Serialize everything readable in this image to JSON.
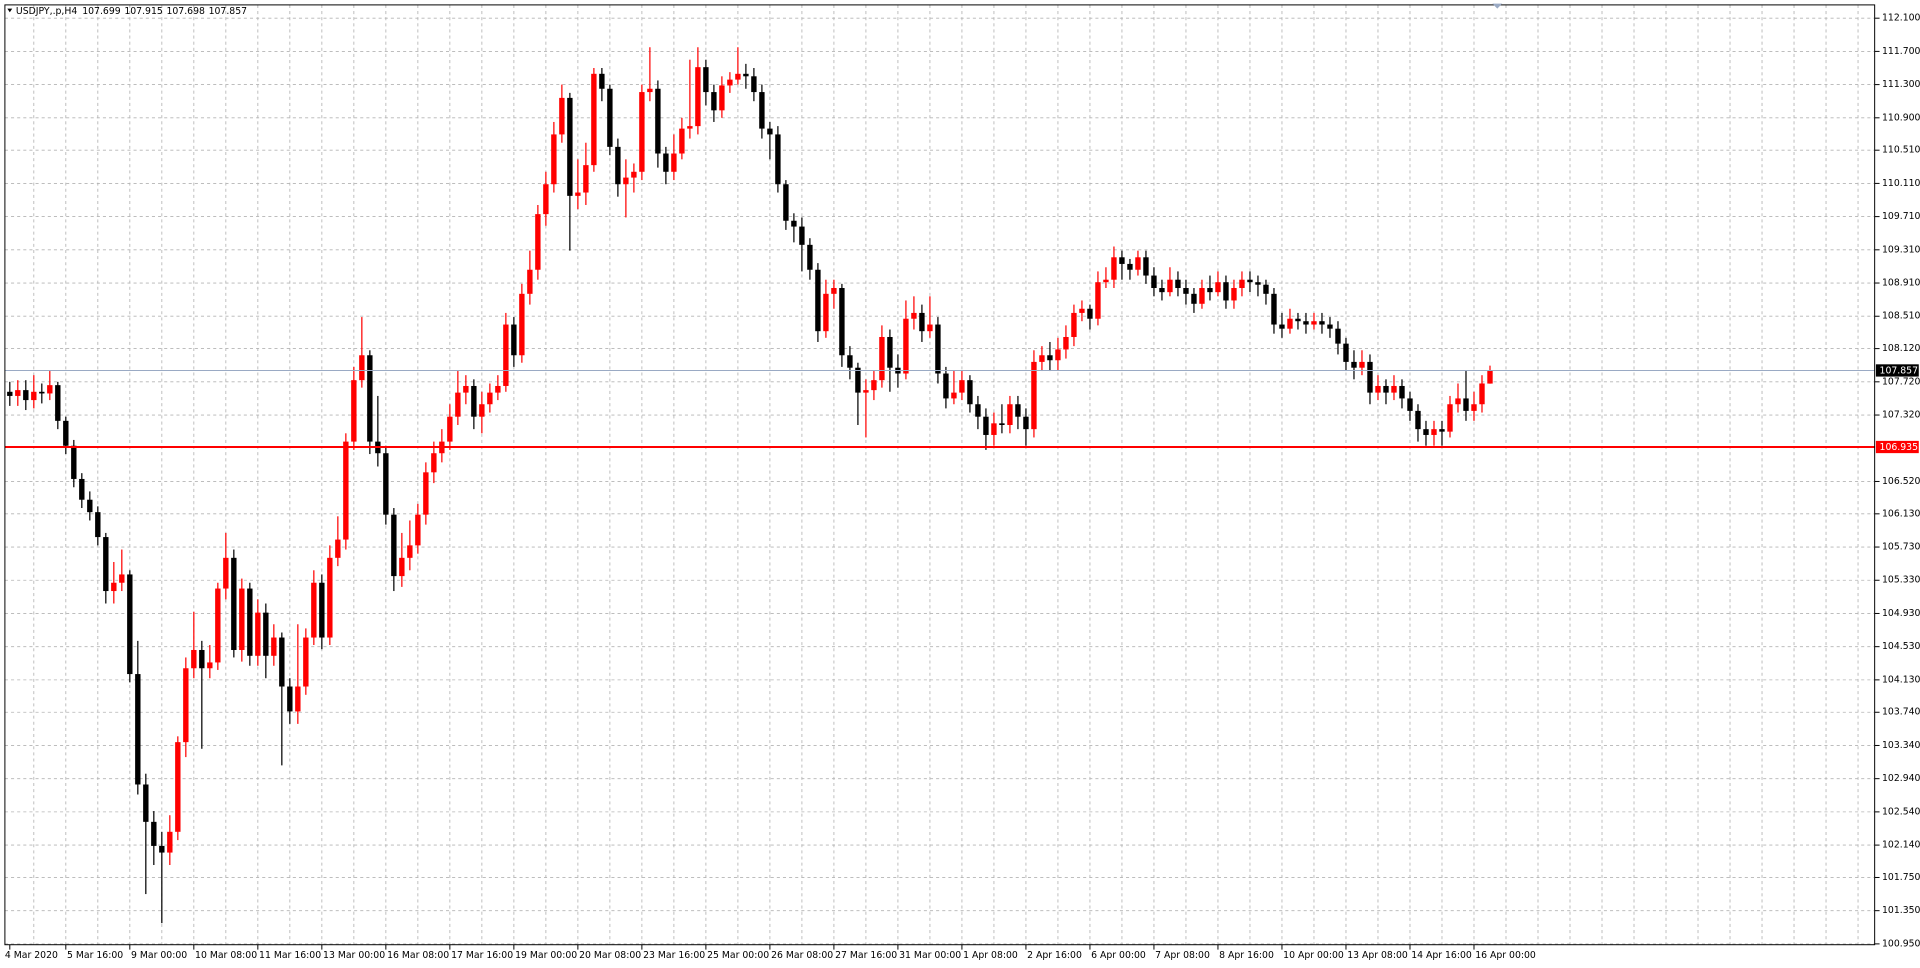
{
  "chart_data": {
    "type": "candlestick",
    "title": "USDJPY,.p,H4",
    "categories": [
      "4 Mar 2020",
      null,
      null,
      null,
      null,
      null,
      null,
      "5 Mar 16:00",
      null,
      null,
      null,
      null,
      null,
      null,
      null,
      "9 Mar 00:00",
      null,
      null,
      null,
      null,
      null,
      null,
      null,
      "10 Mar 08:00",
      null,
      null,
      null,
      null,
      null,
      null,
      null,
      "11 Mar 16:00",
      null,
      null,
      null,
      null,
      null,
      null,
      null,
      "13 Mar 00:00",
      null,
      null,
      null,
      null,
      null,
      null,
      null,
      "16 Mar 08:00",
      null,
      null,
      null,
      null,
      null,
      null,
      null,
      "17 Mar 16:00",
      null,
      null,
      null,
      null,
      null,
      null,
      null,
      "19 Mar 00:00",
      null,
      null,
      null,
      null,
      null,
      null,
      null,
      "20 Mar 08:00",
      null,
      null,
      null,
      null,
      null,
      null,
      null,
      "23 Mar 16:00",
      null,
      null,
      null,
      null,
      null,
      null,
      null,
      "25 Mar 00:00",
      null,
      null,
      null,
      null,
      null,
      null,
      null,
      "26 Mar 08:00",
      null,
      null,
      null,
      null,
      null,
      null,
      null,
      "27 Mar 16:00",
      null,
      null,
      null,
      null,
      null,
      null,
      null,
      "31 Mar 00:00",
      null,
      null,
      null,
      null,
      null,
      null,
      null,
      "1 Apr 08:00",
      null,
      null,
      null,
      null,
      null,
      null,
      null,
      "2 Apr 16:00",
      null,
      null,
      null,
      null,
      null,
      null,
      null,
      "6 Apr 00:00",
      null,
      null,
      null,
      null,
      null,
      null,
      null,
      "7 Apr 08:00",
      null,
      null,
      null,
      null,
      null,
      null,
      null,
      "8 Apr 16:00",
      null,
      null,
      null,
      null,
      null,
      null,
      null,
      "10 Apr 00:00",
      null,
      null,
      null,
      null,
      null,
      null,
      null,
      "13 Apr 08:00",
      null,
      null,
      null,
      null,
      null,
      null,
      null,
      "14 Apr 16:00",
      null,
      null,
      null,
      null,
      null,
      null,
      null,
      "16 Apr 00:00",
      null,
      null
    ],
    "ohlc": [
      [
        107.6,
        107.72,
        107.43,
        107.55
      ],
      [
        107.55,
        107.74,
        107.43,
        107.62
      ],
      [
        107.62,
        107.74,
        107.38,
        107.5
      ],
      [
        107.5,
        107.8,
        107.4,
        107.6
      ],
      [
        107.6,
        107.7,
        107.46,
        107.58
      ],
      [
        107.58,
        107.85,
        107.5,
        107.68
      ],
      [
        107.68,
        107.72,
        107.15,
        107.25
      ],
      [
        107.25,
        107.3,
        106.85,
        106.95
      ],
      [
        106.95,
        107.02,
        106.45,
        106.55
      ],
      [
        106.55,
        106.62,
        106.2,
        106.3
      ],
      [
        106.3,
        106.4,
        106.05,
        106.15
      ],
      [
        106.15,
        106.22,
        105.75,
        105.85
      ],
      [
        105.85,
        105.9,
        105.05,
        105.2
      ],
      [
        105.2,
        105.55,
        105.05,
        105.3
      ],
      [
        105.3,
        105.7,
        105.2,
        105.4
      ],
      [
        105.4,
        105.45,
        104.1,
        104.2
      ],
      [
        104.2,
        104.6,
        102.75,
        102.87
      ],
      [
        102.87,
        103.0,
        101.55,
        102.42
      ],
      [
        102.42,
        102.55,
        101.9,
        102.13
      ],
      [
        102.13,
        102.3,
        101.2,
        102.05
      ],
      [
        102.05,
        102.5,
        101.9,
        102.3
      ],
      [
        102.3,
        103.45,
        102.2,
        103.38
      ],
      [
        103.38,
        104.4,
        103.2,
        104.27
      ],
      [
        104.27,
        104.95,
        104.15,
        104.49
      ],
      [
        104.49,
        104.6,
        103.3,
        104.27
      ],
      [
        104.27,
        104.55,
        104.15,
        104.34
      ],
      [
        104.34,
        105.3,
        104.25,
        105.23
      ],
      [
        105.23,
        105.9,
        105.1,
        105.6
      ],
      [
        105.6,
        105.7,
        104.4,
        104.49
      ],
      [
        104.49,
        105.35,
        104.35,
        105.23
      ],
      [
        105.23,
        105.3,
        104.3,
        104.42
      ],
      [
        104.42,
        105.1,
        104.3,
        104.94
      ],
      [
        104.94,
        105.05,
        104.15,
        104.42
      ],
      [
        104.42,
        104.8,
        104.3,
        104.64
      ],
      [
        104.64,
        104.7,
        103.1,
        104.05
      ],
      [
        104.05,
        104.15,
        103.6,
        103.75
      ],
      [
        103.75,
        104.8,
        103.6,
        104.05
      ],
      [
        104.05,
        104.75,
        103.95,
        104.64
      ],
      [
        104.64,
        105.45,
        104.55,
        105.3
      ],
      [
        105.3,
        105.4,
        104.5,
        104.64
      ],
      [
        104.64,
        105.75,
        104.55,
        105.6
      ],
      [
        105.6,
        106.1,
        105.5,
        105.82
      ],
      [
        105.82,
        107.1,
        105.7,
        107.0
      ],
      [
        107.0,
        107.9,
        106.9,
        107.74
      ],
      [
        107.74,
        108.5,
        107.65,
        108.04
      ],
      [
        108.04,
        108.1,
        106.85,
        107.0
      ],
      [
        107.0,
        107.55,
        106.7,
        106.86
      ],
      [
        106.86,
        106.95,
        106.0,
        106.12
      ],
      [
        106.12,
        106.2,
        105.2,
        105.38
      ],
      [
        105.38,
        105.9,
        105.25,
        105.6
      ],
      [
        105.6,
        106.05,
        105.45,
        105.75
      ],
      [
        105.75,
        106.25,
        105.65,
        106.12
      ],
      [
        106.12,
        106.75,
        106.0,
        106.63
      ],
      [
        106.63,
        107.0,
        106.5,
        106.86
      ],
      [
        106.86,
        107.15,
        106.75,
        107.0
      ],
      [
        107.0,
        107.45,
        106.9,
        107.3
      ],
      [
        107.3,
        107.85,
        107.2,
        107.59
      ],
      [
        107.59,
        107.8,
        107.45,
        107.67
      ],
      [
        107.67,
        107.75,
        107.15,
        107.3
      ],
      [
        107.3,
        107.6,
        107.1,
        107.45
      ],
      [
        107.45,
        107.7,
        107.35,
        107.59
      ],
      [
        107.59,
        107.8,
        107.5,
        107.67
      ],
      [
        107.67,
        108.55,
        107.6,
        108.41
      ],
      [
        108.41,
        108.5,
        107.9,
        108.04
      ],
      [
        108.04,
        108.9,
        107.95,
        108.78
      ],
      [
        108.78,
        109.3,
        108.65,
        109.07
      ],
      [
        109.07,
        109.85,
        108.95,
        109.74
      ],
      [
        109.74,
        110.25,
        109.6,
        110.1
      ],
      [
        110.1,
        110.85,
        110.0,
        110.7
      ],
      [
        110.7,
        111.3,
        110.6,
        111.14
      ],
      [
        111.14,
        111.2,
        109.3,
        109.96
      ],
      [
        109.96,
        110.4,
        109.8,
        110.0
      ],
      [
        110.0,
        110.6,
        109.85,
        110.33
      ],
      [
        110.33,
        111.5,
        110.25,
        111.43
      ],
      [
        111.43,
        111.5,
        111.1,
        111.25
      ],
      [
        111.25,
        111.3,
        110.45,
        110.55
      ],
      [
        110.55,
        110.65,
        109.95,
        110.1
      ],
      [
        110.1,
        110.4,
        109.7,
        110.18
      ],
      [
        110.18,
        110.35,
        110.0,
        110.25
      ],
      [
        110.25,
        111.3,
        110.15,
        111.21
      ],
      [
        111.21,
        111.75,
        111.1,
        111.25
      ],
      [
        111.25,
        111.35,
        110.3,
        110.47
      ],
      [
        110.47,
        110.55,
        110.1,
        110.25
      ],
      [
        110.25,
        110.7,
        110.15,
        110.47
      ],
      [
        110.47,
        110.9,
        110.4,
        110.77
      ],
      [
        110.77,
        111.6,
        110.65,
        110.8
      ],
      [
        110.8,
        111.75,
        110.7,
        111.51
      ],
      [
        111.51,
        111.6,
        111.05,
        111.21
      ],
      [
        111.21,
        111.3,
        110.85,
        110.99
      ],
      [
        110.99,
        111.4,
        110.9,
        111.29
      ],
      [
        111.29,
        111.45,
        111.2,
        111.36
      ],
      [
        111.36,
        111.75,
        111.3,
        111.43
      ],
      [
        111.43,
        111.55,
        111.25,
        111.4
      ],
      [
        111.4,
        111.5,
        111.1,
        111.21
      ],
      [
        111.21,
        111.3,
        110.65,
        110.77
      ],
      [
        110.77,
        110.85,
        110.4,
        110.7
      ],
      [
        110.7,
        110.8,
        110.0,
        110.1
      ],
      [
        110.1,
        110.15,
        109.55,
        109.66
      ],
      [
        109.66,
        109.75,
        109.4,
        109.59
      ],
      [
        109.59,
        109.7,
        109.05,
        109.37
      ],
      [
        109.37,
        109.45,
        108.95,
        109.07
      ],
      [
        109.07,
        109.15,
        108.2,
        108.33
      ],
      [
        108.33,
        108.95,
        108.25,
        108.78
      ],
      [
        108.78,
        108.95,
        108.6,
        108.85
      ],
      [
        108.85,
        108.9,
        107.9,
        108.04
      ],
      [
        108.04,
        108.15,
        107.75,
        107.89
      ],
      [
        107.89,
        107.95,
        107.2,
        107.59
      ],
      [
        107.59,
        107.75,
        107.05,
        107.62
      ],
      [
        107.62,
        107.85,
        107.5,
        107.74
      ],
      [
        107.74,
        108.4,
        107.65,
        108.26
      ],
      [
        108.26,
        108.35,
        107.6,
        107.89
      ],
      [
        107.89,
        108.05,
        107.65,
        107.82
      ],
      [
        107.82,
        108.7,
        107.75,
        108.48
      ],
      [
        108.48,
        108.75,
        108.35,
        108.55
      ],
      [
        108.55,
        108.65,
        108.2,
        108.33
      ],
      [
        108.33,
        108.75,
        108.25,
        108.41
      ],
      [
        108.41,
        108.5,
        107.7,
        107.82
      ],
      [
        107.82,
        107.9,
        107.4,
        107.52
      ],
      [
        107.52,
        107.85,
        107.45,
        107.59
      ],
      [
        107.59,
        107.85,
        107.5,
        107.74
      ],
      [
        107.74,
        107.8,
        107.35,
        107.45
      ],
      [
        107.45,
        107.55,
        107.15,
        107.3
      ],
      [
        107.3,
        107.4,
        106.9,
        107.08
      ],
      [
        107.08,
        107.35,
        106.95,
        107.22
      ],
      [
        107.22,
        107.45,
        107.1,
        107.2
      ],
      [
        107.2,
        107.55,
        107.1,
        107.45
      ],
      [
        107.45,
        107.55,
        107.15,
        107.3
      ],
      [
        107.3,
        107.4,
        106.95,
        107.15
      ],
      [
        107.15,
        108.1,
        107.05,
        107.96
      ],
      [
        107.96,
        108.15,
        107.85,
        108.04
      ],
      [
        108.04,
        108.2,
        107.85,
        107.98
      ],
      [
        107.98,
        108.25,
        107.85,
        108.11
      ],
      [
        108.11,
        108.4,
        108.0,
        108.26
      ],
      [
        108.26,
        108.65,
        108.15,
        108.55
      ],
      [
        108.55,
        108.7,
        108.45,
        108.6
      ],
      [
        108.6,
        108.65,
        108.35,
        108.48
      ],
      [
        108.48,
        109.05,
        108.4,
        108.92
      ],
      [
        108.92,
        109.1,
        108.85,
        108.95
      ],
      [
        108.95,
        109.35,
        108.85,
        109.22
      ],
      [
        109.22,
        109.3,
        108.95,
        109.14
      ],
      [
        109.14,
        109.2,
        108.95,
        109.07
      ],
      [
        109.07,
        109.3,
        109.0,
        109.22
      ],
      [
        109.22,
        109.3,
        108.9,
        109.0
      ],
      [
        109.0,
        109.1,
        108.75,
        108.85
      ],
      [
        108.85,
        108.95,
        108.7,
        108.8
      ],
      [
        108.8,
        109.1,
        108.75,
        108.95
      ],
      [
        108.95,
        109.05,
        108.75,
        108.85
      ],
      [
        108.85,
        108.95,
        108.65,
        108.78
      ],
      [
        108.78,
        108.85,
        108.55,
        108.66
      ],
      [
        108.66,
        108.95,
        108.6,
        108.85
      ],
      [
        108.85,
        109.0,
        108.7,
        108.8
      ],
      [
        108.8,
        109.05,
        108.75,
        108.92
      ],
      [
        108.92,
        109.0,
        108.6,
        108.7
      ],
      [
        108.7,
        108.95,
        108.6,
        108.85
      ],
      [
        108.85,
        109.05,
        108.75,
        108.95
      ],
      [
        108.95,
        109.05,
        108.8,
        108.92
      ],
      [
        108.92,
        109.0,
        108.75,
        108.89
      ],
      [
        108.89,
        108.95,
        108.65,
        108.78
      ],
      [
        108.78,
        108.85,
        108.3,
        108.41
      ],
      [
        108.41,
        108.55,
        108.25,
        108.36
      ],
      [
        108.36,
        108.6,
        108.3,
        108.48
      ],
      [
        108.48,
        108.55,
        108.35,
        108.45
      ],
      [
        108.45,
        108.55,
        108.3,
        108.41
      ],
      [
        108.41,
        108.55,
        108.35,
        108.45
      ],
      [
        108.45,
        108.55,
        108.3,
        108.41
      ],
      [
        108.41,
        108.5,
        108.25,
        108.36
      ],
      [
        108.36,
        108.45,
        108.05,
        108.18
      ],
      [
        108.18,
        108.25,
        107.85,
        107.96
      ],
      [
        107.96,
        108.1,
        107.75,
        107.89
      ],
      [
        107.89,
        108.1,
        107.8,
        107.96
      ],
      [
        107.96,
        108.05,
        107.45,
        107.59
      ],
      [
        107.59,
        107.8,
        107.5,
        107.67
      ],
      [
        107.67,
        107.75,
        107.45,
        107.59
      ],
      [
        107.59,
        107.8,
        107.5,
        107.67
      ],
      [
        107.67,
        107.75,
        107.4,
        107.52
      ],
      [
        107.52,
        107.6,
        107.25,
        107.37
      ],
      [
        107.37,
        107.45,
        107.0,
        107.15
      ],
      [
        107.15,
        107.25,
        106.95,
        107.08
      ],
      [
        107.08,
        107.25,
        106.95,
        107.15
      ],
      [
        107.15,
        107.25,
        106.95,
        107.12
      ],
      [
        107.12,
        107.55,
        107.05,
        107.45
      ],
      [
        107.45,
        107.7,
        107.35,
        107.52
      ],
      [
        107.52,
        107.85,
        107.25,
        107.37
      ],
      [
        107.37,
        107.6,
        107.25,
        107.45
      ],
      [
        107.45,
        107.8,
        107.35,
        107.7
      ],
      [
        107.699,
        107.915,
        107.698,
        107.857
      ]
    ],
    "up_color": "#ff0000",
    "down_color": "#000000",
    "ylim": [
      100.94,
      112.26
    ],
    "yticks": [
      {
        "value": 112.1,
        "label": "112.100"
      },
      {
        "value": 111.7,
        "label": "111.700"
      },
      {
        "value": 111.3,
        "label": "111.300"
      },
      {
        "value": 110.9,
        "label": "110.900"
      },
      {
        "value": 110.51,
        "label": "110.510"
      },
      {
        "value": 110.11,
        "label": "110.110"
      },
      {
        "value": 109.71,
        "label": "109.710"
      },
      {
        "value": 109.31,
        "label": "109.310"
      },
      {
        "value": 108.91,
        "label": "108.910"
      },
      {
        "value": 108.51,
        "label": "108.510"
      },
      {
        "value": 108.12,
        "label": "108.120"
      },
      {
        "value": 107.72,
        "label": "107.720"
      },
      {
        "value": 107.32,
        "label": "107.320"
      },
      {
        "value": 106.52,
        "label": "106.520"
      },
      {
        "value": 106.13,
        "label": "106.130"
      },
      {
        "value": 105.73,
        "label": "105.730"
      },
      {
        "value": 105.33,
        "label": "105.330"
      },
      {
        "value": 104.93,
        "label": "104.930"
      },
      {
        "value": 104.53,
        "label": "104.530"
      },
      {
        "value": 104.13,
        "label": "104.130"
      },
      {
        "value": 103.74,
        "label": "103.740"
      },
      {
        "value": 103.34,
        "label": "103.340"
      },
      {
        "value": 102.94,
        "label": "102.940"
      },
      {
        "value": 102.54,
        "label": "102.540"
      },
      {
        "value": 102.14,
        "label": "102.140"
      },
      {
        "value": 101.75,
        "label": "101.750"
      },
      {
        "value": 101.35,
        "label": "101.350"
      },
      {
        "value": 100.95,
        "label": "100.950"
      }
    ],
    "grid": true,
    "hlines": [
      {
        "value": 106.935,
        "color": "#ff0000"
      }
    ],
    "last_price_color": "#9aaac4"
  }
}
